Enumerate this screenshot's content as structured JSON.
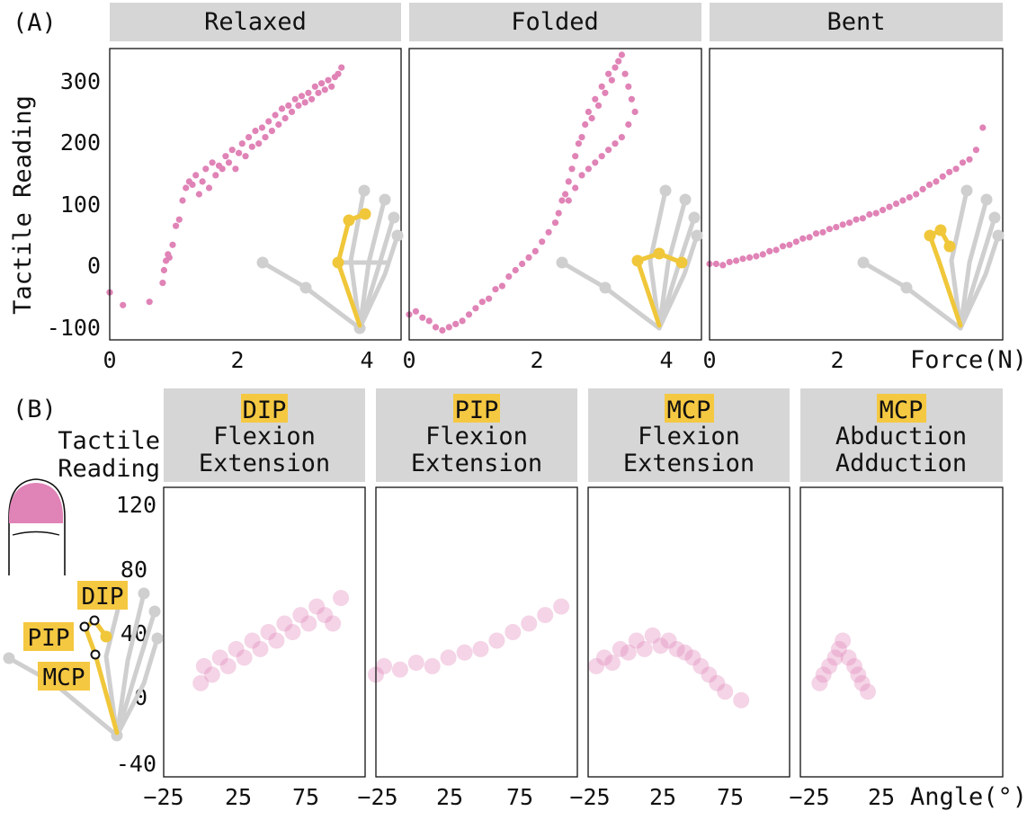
{
  "figure_labels": {
    "a": "(A)",
    "b": "(B)"
  },
  "colors": {
    "point": "#e083b6",
    "strip": "#d6d6d6",
    "highlight": "#f5c842",
    "hand_gray": "#cfcfcf",
    "hand_yellow": "#f0c73a"
  },
  "section_a": {
    "y_label": "Tactile Reading",
    "x_label": "Force(N)",
    "y_ticks": [
      "300",
      "200",
      "100",
      "0",
      "-100"
    ],
    "x_ticks": [
      "0",
      "2",
      "4"
    ]
  },
  "section_b": {
    "y_label_line1": "Tactile",
    "y_label_line2": "Reading",
    "x_label": "Angle(°)",
    "y_ticks": [
      "120",
      "80",
      "40",
      "0",
      "-40"
    ],
    "x_ticks_wide": [
      "−25",
      "25",
      "75"
    ],
    "x_ticks_narrow": [
      "−25",
      "25"
    ],
    "joint_labels": [
      "DIP",
      "PIP",
      "MCP"
    ]
  },
  "chart_data": [
    {
      "type": "scatter",
      "title": "Relaxed",
      "xlabel": "Force(N)",
      "ylabel": "Tactile Reading",
      "xlim": [
        0,
        4.4
      ],
      "ylim": [
        -120,
        340
      ],
      "grid": false,
      "x": [
        0.0,
        0.2,
        0.6,
        0.8,
        0.82,
        0.85,
        0.88,
        0.9,
        0.95,
        1.0,
        1.05,
        1.1,
        1.15,
        1.2,
        1.25,
        1.3,
        1.35,
        1.4,
        1.45,
        1.5,
        1.55,
        1.6,
        1.65,
        1.7,
        1.75,
        1.8,
        1.85,
        1.9,
        1.95,
        2.0,
        2.05,
        2.1,
        2.15,
        2.2,
        2.25,
        2.3,
        2.35,
        2.4,
        2.45,
        2.5,
        2.55,
        2.6,
        2.65,
        2.7,
        2.75,
        2.8,
        2.85,
        2.9,
        2.95,
        3.0,
        3.05,
        3.1,
        3.15,
        3.2,
        3.25,
        3.3,
        3.35,
        3.4,
        3.45,
        3.5
      ],
      "y": [
        -45,
        -65,
        -60,
        -30,
        -10,
        5,
        15,
        10,
        30,
        60,
        70,
        100,
        120,
        130,
        125,
        140,
        110,
        130,
        150,
        120,
        160,
        140,
        155,
        150,
        170,
        160,
        180,
        150,
        175,
        190,
        170,
        200,
        185,
        210,
        190,
        215,
        200,
        225,
        210,
        235,
        220,
        245,
        230,
        250,
        240,
        260,
        250,
        265,
        255,
        270,
        260,
        280,
        270,
        285,
        275,
        290,
        280,
        295,
        300,
        310
      ]
    },
    {
      "type": "scatter",
      "title": "Folded",
      "xlabel": "Force(N)",
      "ylabel": "Tactile Reading",
      "xlim": [
        0,
        4.4
      ],
      "ylim": [
        -120,
        340
      ],
      "grid": false,
      "x": [
        0.0,
        0.1,
        0.2,
        0.3,
        0.4,
        0.5,
        0.6,
        0.7,
        0.8,
        0.9,
        1.0,
        1.1,
        1.2,
        1.3,
        1.4,
        1.5,
        1.6,
        1.7,
        1.8,
        1.9,
        2.0,
        2.1,
        2.2,
        2.25,
        2.3,
        2.35,
        2.4,
        2.45,
        2.5,
        2.55,
        2.6,
        2.65,
        2.7,
        2.75,
        2.8,
        2.85,
        2.9,
        2.95,
        3.0,
        3.05,
        3.1,
        3.15,
        3.2,
        3.25,
        3.3,
        3.35,
        3.4,
        3.3,
        3.2,
        3.1,
        3.0,
        2.9,
        2.8,
        2.7,
        2.6,
        2.5,
        2.4
      ],
      "y": [
        -80,
        -75,
        -85,
        -90,
        -100,
        -105,
        -100,
        -95,
        -90,
        -80,
        -70,
        -60,
        -55,
        -40,
        -35,
        -20,
        -10,
        0,
        10,
        20,
        35,
        50,
        65,
        80,
        100,
        110,
        130,
        150,
        170,
        190,
        200,
        220,
        240,
        230,
        260,
        250,
        280,
        270,
        300,
        290,
        310,
        320,
        330,
        300,
        280,
        260,
        240,
        220,
        200,
        190,
        180,
        170,
        160,
        150,
        140,
        120,
        100
      ]
    },
    {
      "type": "scatter",
      "title": "Bent",
      "xlabel": "Force(N)",
      "ylabel": "Tactile Reading",
      "xlim": [
        0,
        4.4
      ],
      "ylim": [
        -120,
        340
      ],
      "grid": false,
      "x": [
        0.0,
        0.1,
        0.2,
        0.3,
        0.4,
        0.5,
        0.6,
        0.7,
        0.8,
        0.9,
        1.0,
        1.1,
        1.2,
        1.3,
        1.4,
        1.5,
        1.6,
        1.7,
        1.8,
        1.9,
        2.0,
        2.1,
        2.2,
        2.3,
        2.4,
        2.5,
        2.6,
        2.7,
        2.8,
        2.9,
        3.0,
        3.1,
        3.2,
        3.3,
        3.4,
        3.5,
        3.6,
        3.7,
        3.8,
        3.9,
        4.0,
        4.1
      ],
      "y": [
        0,
        0,
        -2,
        3,
        5,
        8,
        10,
        12,
        15,
        20,
        22,
        28,
        30,
        35,
        40,
        42,
        48,
        50,
        55,
        58,
        62,
        65,
        70,
        72,
        78,
        80,
        85,
        90,
        95,
        100,
        105,
        110,
        118,
        125,
        130,
        138,
        145,
        150,
        160,
        165,
        180,
        215
      ]
    },
    {
      "type": "scatter",
      "title": "DIP Flexion Extension",
      "xlabel": "Angle(°)",
      "ylabel": "Tactile Reading",
      "xlim": [
        -25,
        100
      ],
      "ylim": [
        -45,
        125
      ],
      "grid": false,
      "x": [
        -2,
        0,
        5,
        10,
        15,
        20,
        25,
        30,
        35,
        40,
        45,
        50,
        55,
        60,
        65,
        70,
        75,
        80,
        85
      ],
      "y": [
        10,
        20,
        15,
        25,
        20,
        30,
        25,
        35,
        30,
        40,
        35,
        45,
        40,
        50,
        45,
        55,
        50,
        45,
        60
      ]
    },
    {
      "type": "scatter",
      "title": "PIP Flexion Extension",
      "xlabel": "Angle(°)",
      "ylabel": "Tactile Reading",
      "xlim": [
        -25,
        100
      ],
      "ylim": [
        -45,
        125
      ],
      "grid": false,
      "x": [
        -25,
        -20,
        -10,
        0,
        10,
        20,
        30,
        40,
        50,
        60,
        70,
        80,
        90
      ],
      "y": [
        15,
        20,
        18,
        22,
        20,
        25,
        28,
        30,
        35,
        40,
        45,
        50,
        55
      ]
    },
    {
      "type": "scatter",
      "title": "MCP Flexion Extension",
      "xlabel": "Angle(°)",
      "ylabel": "Tactile Reading",
      "xlim": [
        -25,
        100
      ],
      "ylim": [
        -45,
        125
      ],
      "grid": false,
      "x": [
        -20,
        -15,
        -10,
        -5,
        0,
        5,
        10,
        15,
        20,
        25,
        30,
        35,
        40,
        45,
        50,
        55,
        60,
        70
      ],
      "y": [
        20,
        25,
        22,
        30,
        28,
        35,
        30,
        38,
        32,
        35,
        30,
        28,
        25,
        20,
        15,
        10,
        5,
        0
      ]
    },
    {
      "type": "scatter",
      "title": "MCP Abduction Adduction",
      "xlabel": "Angle(°)",
      "ylabel": "Tactile Reading",
      "xlim": [
        -30,
        75
      ],
      "ylim": [
        -45,
        125
      ],
      "grid": false,
      "x": [
        -20,
        -18,
        -15,
        -12,
        -10,
        -8,
        -5,
        -2,
        0,
        2,
        5
      ],
      "y": [
        10,
        15,
        20,
        25,
        30,
        35,
        25,
        20,
        15,
        10,
        5
      ]
    }
  ],
  "strip_titles_a": [
    "Relaxed",
    "Folded",
    "Bent"
  ],
  "strip_titles_b": [
    {
      "joint": "DIP",
      "line1": "Flexion",
      "line2": "Extension"
    },
    {
      "joint": "PIP",
      "line1": "Flexion",
      "line2": "Extension"
    },
    {
      "joint": "MCP",
      "line1": "Flexion",
      "line2": "Extension"
    },
    {
      "joint": "MCP",
      "line1": "Abduction",
      "line2": "Adduction"
    }
  ]
}
